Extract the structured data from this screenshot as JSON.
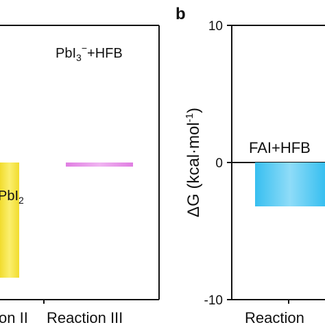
{
  "chart_data": [
    {
      "panel": "a",
      "type": "bar",
      "panel_label": "",
      "categories": [
        "Reaction II",
        "Reaction III"
      ],
      "category_labels": [
        "on II",
        "Reaction III"
      ],
      "bar_labels": [
        {
          "main": "PbI",
          "sub": "2",
          "sup": "",
          "suffix": ""
        },
        {
          "main": "PbI",
          "sub": "3",
          "sup": "−",
          "suffix": "+HFB"
        }
      ],
      "values": [
        -8.4,
        -0.3
      ],
      "colors": [
        "#f7e34a",
        "#e38ae6"
      ],
      "ylim": [
        -10,
        10
      ],
      "ylabel": "",
      "grid": false
    },
    {
      "panel": "b",
      "type": "bar",
      "panel_label": "b",
      "categories": [
        "Reaction I"
      ],
      "category_labels": [
        "Reaction"
      ],
      "bar_labels": [
        {
          "main": "FAI+HFB",
          "sub": "",
          "sup": "",
          "suffix": ""
        }
      ],
      "values": [
        -3.2
      ],
      "colors": [
        "#4fc9f1"
      ],
      "ylim": [
        -10,
        10
      ],
      "yticks": [
        -10,
        0,
        10
      ],
      "ytick_labels": [
        "-10",
        "0",
        "10"
      ],
      "ylabel": {
        "main": "ΔG (kcal·mol",
        "sup": "-1",
        "close": ")"
      },
      "zero_line": true,
      "grid": false
    }
  ]
}
